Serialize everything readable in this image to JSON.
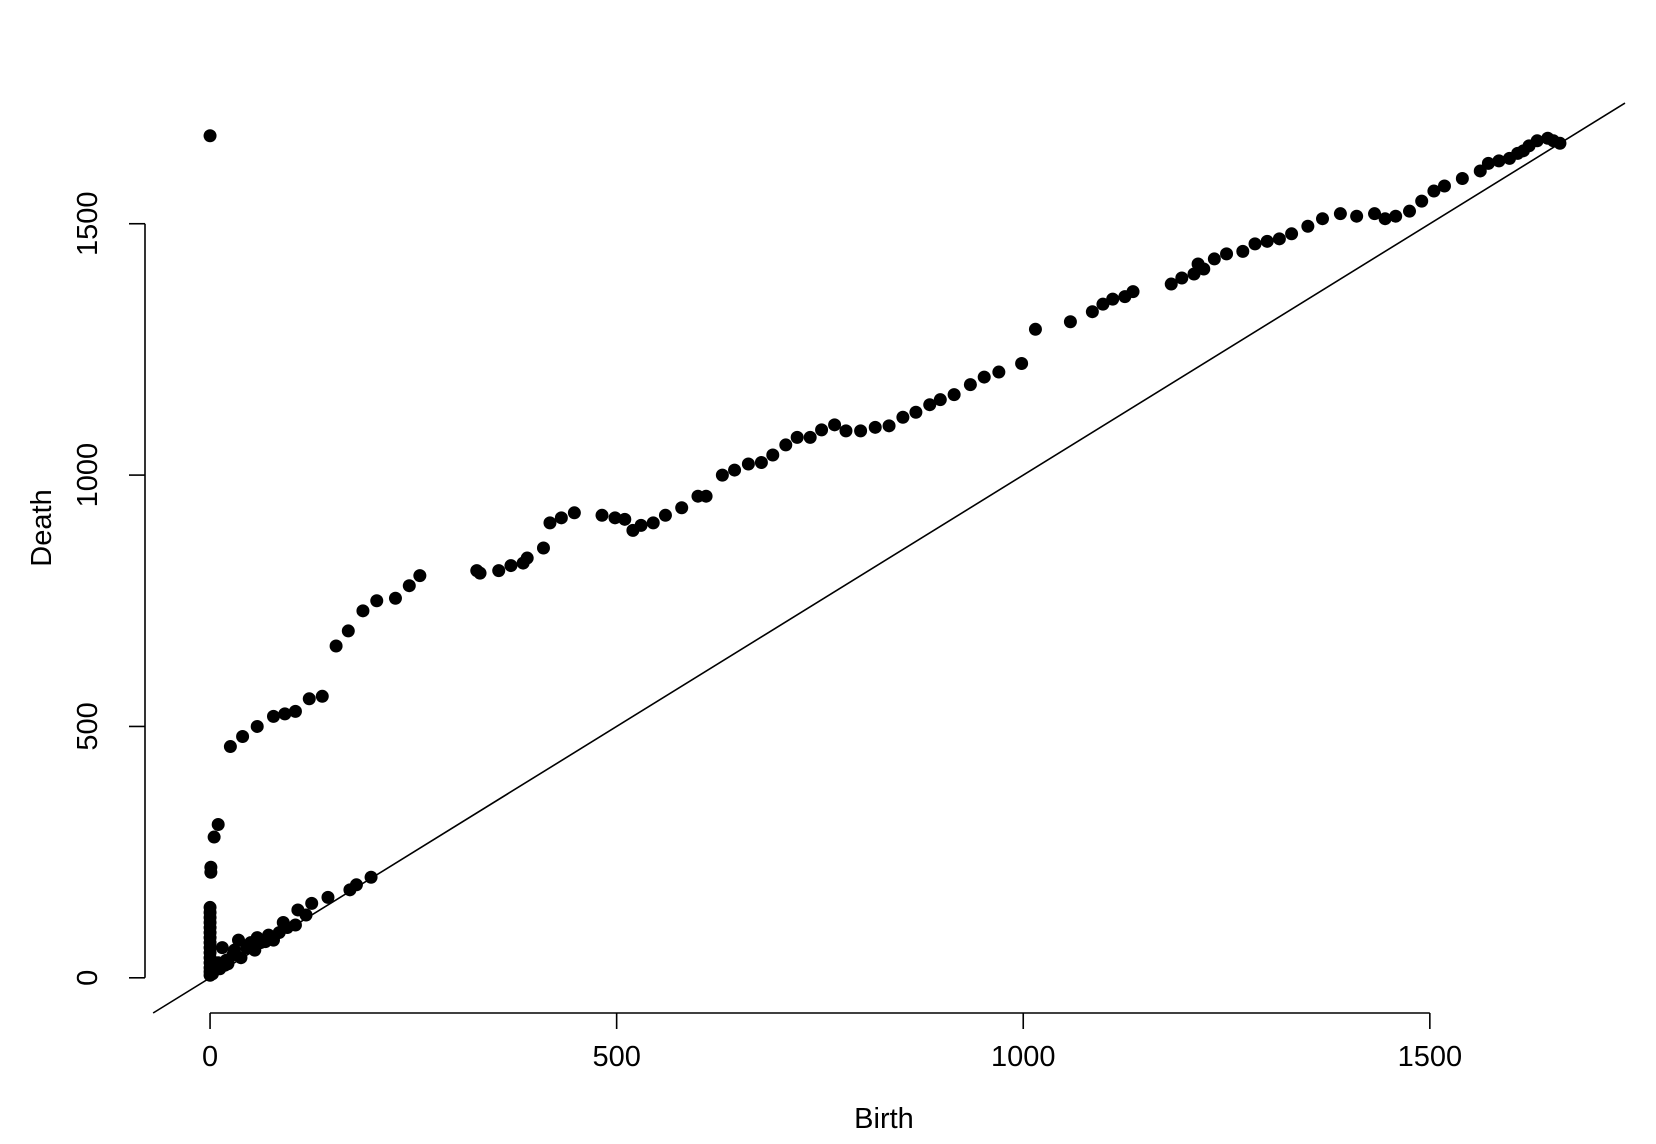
{
  "chart_data": {
    "type": "scatter",
    "title": "",
    "xlabel": "Birth",
    "ylabel": "Death",
    "xlim": [
      -80,
      1740
    ],
    "ylim": [
      -70,
      1770
    ],
    "x_ticks": [
      0,
      500,
      1000,
      1500
    ],
    "y_ticks": [
      0,
      500,
      1000,
      1500
    ],
    "x_tick_labels": [
      "0",
      "500",
      "1000",
      "1500"
    ],
    "y_tick_labels": [
      "0",
      "500",
      "1000",
      "1500"
    ],
    "grid": false,
    "legend": null,
    "reference_line": {
      "type": "diagonal",
      "slope": 1,
      "intercept": 0
    },
    "point_color": "#000000",
    "points": [
      [
        0,
        1675
      ],
      [
        5,
        280
      ],
      [
        10,
        305
      ],
      [
        25,
        460
      ],
      [
        40,
        480
      ],
      [
        58,
        500
      ],
      [
        78,
        520
      ],
      [
        92,
        525
      ],
      [
        105,
        530
      ],
      [
        122,
        555
      ],
      [
        138,
        560
      ],
      [
        155,
        660
      ],
      [
        170,
        690
      ],
      [
        188,
        730
      ],
      [
        205,
        750
      ],
      [
        228,
        755
      ],
      [
        245,
        780
      ],
      [
        258,
        800
      ],
      [
        328,
        810
      ],
      [
        332,
        805
      ],
      [
        355,
        810
      ],
      [
        370,
        820
      ],
      [
        385,
        825
      ],
      [
        390,
        835
      ],
      [
        410,
        855
      ],
      [
        418,
        905
      ],
      [
        432,
        915
      ],
      [
        448,
        925
      ],
      [
        482,
        920
      ],
      [
        498,
        915
      ],
      [
        510,
        912
      ],
      [
        520,
        890
      ],
      [
        530,
        900
      ],
      [
        545,
        905
      ],
      [
        560,
        920
      ],
      [
        580,
        935
      ],
      [
        600,
        958
      ],
      [
        610,
        958
      ],
      [
        630,
        1000
      ],
      [
        645,
        1010
      ],
      [
        662,
        1022
      ],
      [
        678,
        1025
      ],
      [
        692,
        1040
      ],
      [
        708,
        1060
      ],
      [
        722,
        1075
      ],
      [
        738,
        1075
      ],
      [
        752,
        1090
      ],
      [
        768,
        1100
      ],
      [
        782,
        1088
      ],
      [
        800,
        1088
      ],
      [
        818,
        1095
      ],
      [
        835,
        1098
      ],
      [
        852,
        1115
      ],
      [
        868,
        1125
      ],
      [
        885,
        1140
      ],
      [
        898,
        1150
      ],
      [
        915,
        1160
      ],
      [
        935,
        1180
      ],
      [
        952,
        1195
      ],
      [
        970,
        1205
      ],
      [
        998,
        1222
      ],
      [
        1015,
        1290
      ],
      [
        1058,
        1305
      ],
      [
        1085,
        1325
      ],
      [
        1098,
        1340
      ],
      [
        1110,
        1350
      ],
      [
        1125,
        1355
      ],
      [
        1135,
        1365
      ],
      [
        1182,
        1380
      ],
      [
        1195,
        1392
      ],
      [
        1210,
        1400
      ],
      [
        1215,
        1420
      ],
      [
        1222,
        1410
      ],
      [
        1235,
        1430
      ],
      [
        1250,
        1440
      ],
      [
        1270,
        1445
      ],
      [
        1285,
        1460
      ],
      [
        1300,
        1465
      ],
      [
        1315,
        1470
      ],
      [
        1330,
        1480
      ],
      [
        1350,
        1495
      ],
      [
        1368,
        1510
      ],
      [
        1390,
        1520
      ],
      [
        1410,
        1515
      ],
      [
        1432,
        1520
      ],
      [
        1445,
        1510
      ],
      [
        1458,
        1515
      ],
      [
        1475,
        1525
      ],
      [
        1490,
        1545
      ],
      [
        1505,
        1565
      ],
      [
        1518,
        1575
      ],
      [
        1540,
        1590
      ],
      [
        1562,
        1605
      ],
      [
        1572,
        1620
      ],
      [
        1585,
        1625
      ],
      [
        1598,
        1630
      ],
      [
        1608,
        1640
      ],
      [
        1615,
        1645
      ],
      [
        1622,
        1655
      ],
      [
        1632,
        1665
      ],
      [
        1645,
        1670
      ],
      [
        1652,
        1665
      ],
      [
        1660,
        1660
      ],
      [
        0,
        5
      ],
      [
        0,
        12
      ],
      [
        0,
        20
      ],
      [
        0,
        30
      ],
      [
        0,
        40
      ],
      [
        0,
        50
      ],
      [
        0,
        60
      ],
      [
        0,
        70
      ],
      [
        0,
        80
      ],
      [
        0,
        90
      ],
      [
        0,
        100
      ],
      [
        0,
        110
      ],
      [
        0,
        120
      ],
      [
        0,
        130
      ],
      [
        0,
        140
      ],
      [
        1,
        210
      ],
      [
        1,
        220
      ],
      [
        3,
        8
      ],
      [
        5,
        15
      ],
      [
        8,
        22
      ],
      [
        10,
        30
      ],
      [
        12,
        18
      ],
      [
        15,
        60
      ],
      [
        18,
        25
      ],
      [
        20,
        35
      ],
      [
        22,
        28
      ],
      [
        28,
        45
      ],
      [
        30,
        55
      ],
      [
        35,
        75
      ],
      [
        38,
        40
      ],
      [
        45,
        60
      ],
      [
        50,
        70
      ],
      [
        55,
        55
      ],
      [
        58,
        80
      ],
      [
        62,
        70
      ],
      [
        68,
        72
      ],
      [
        72,
        85
      ],
      [
        78,
        75
      ],
      [
        85,
        90
      ],
      [
        90,
        110
      ],
      [
        95,
        100
      ],
      [
        105,
        105
      ],
      [
        108,
        135
      ],
      [
        118,
        125
      ],
      [
        125,
        148
      ],
      [
        145,
        160
      ],
      [
        172,
        175
      ],
      [
        180,
        185
      ],
      [
        198,
        200
      ]
    ]
  }
}
